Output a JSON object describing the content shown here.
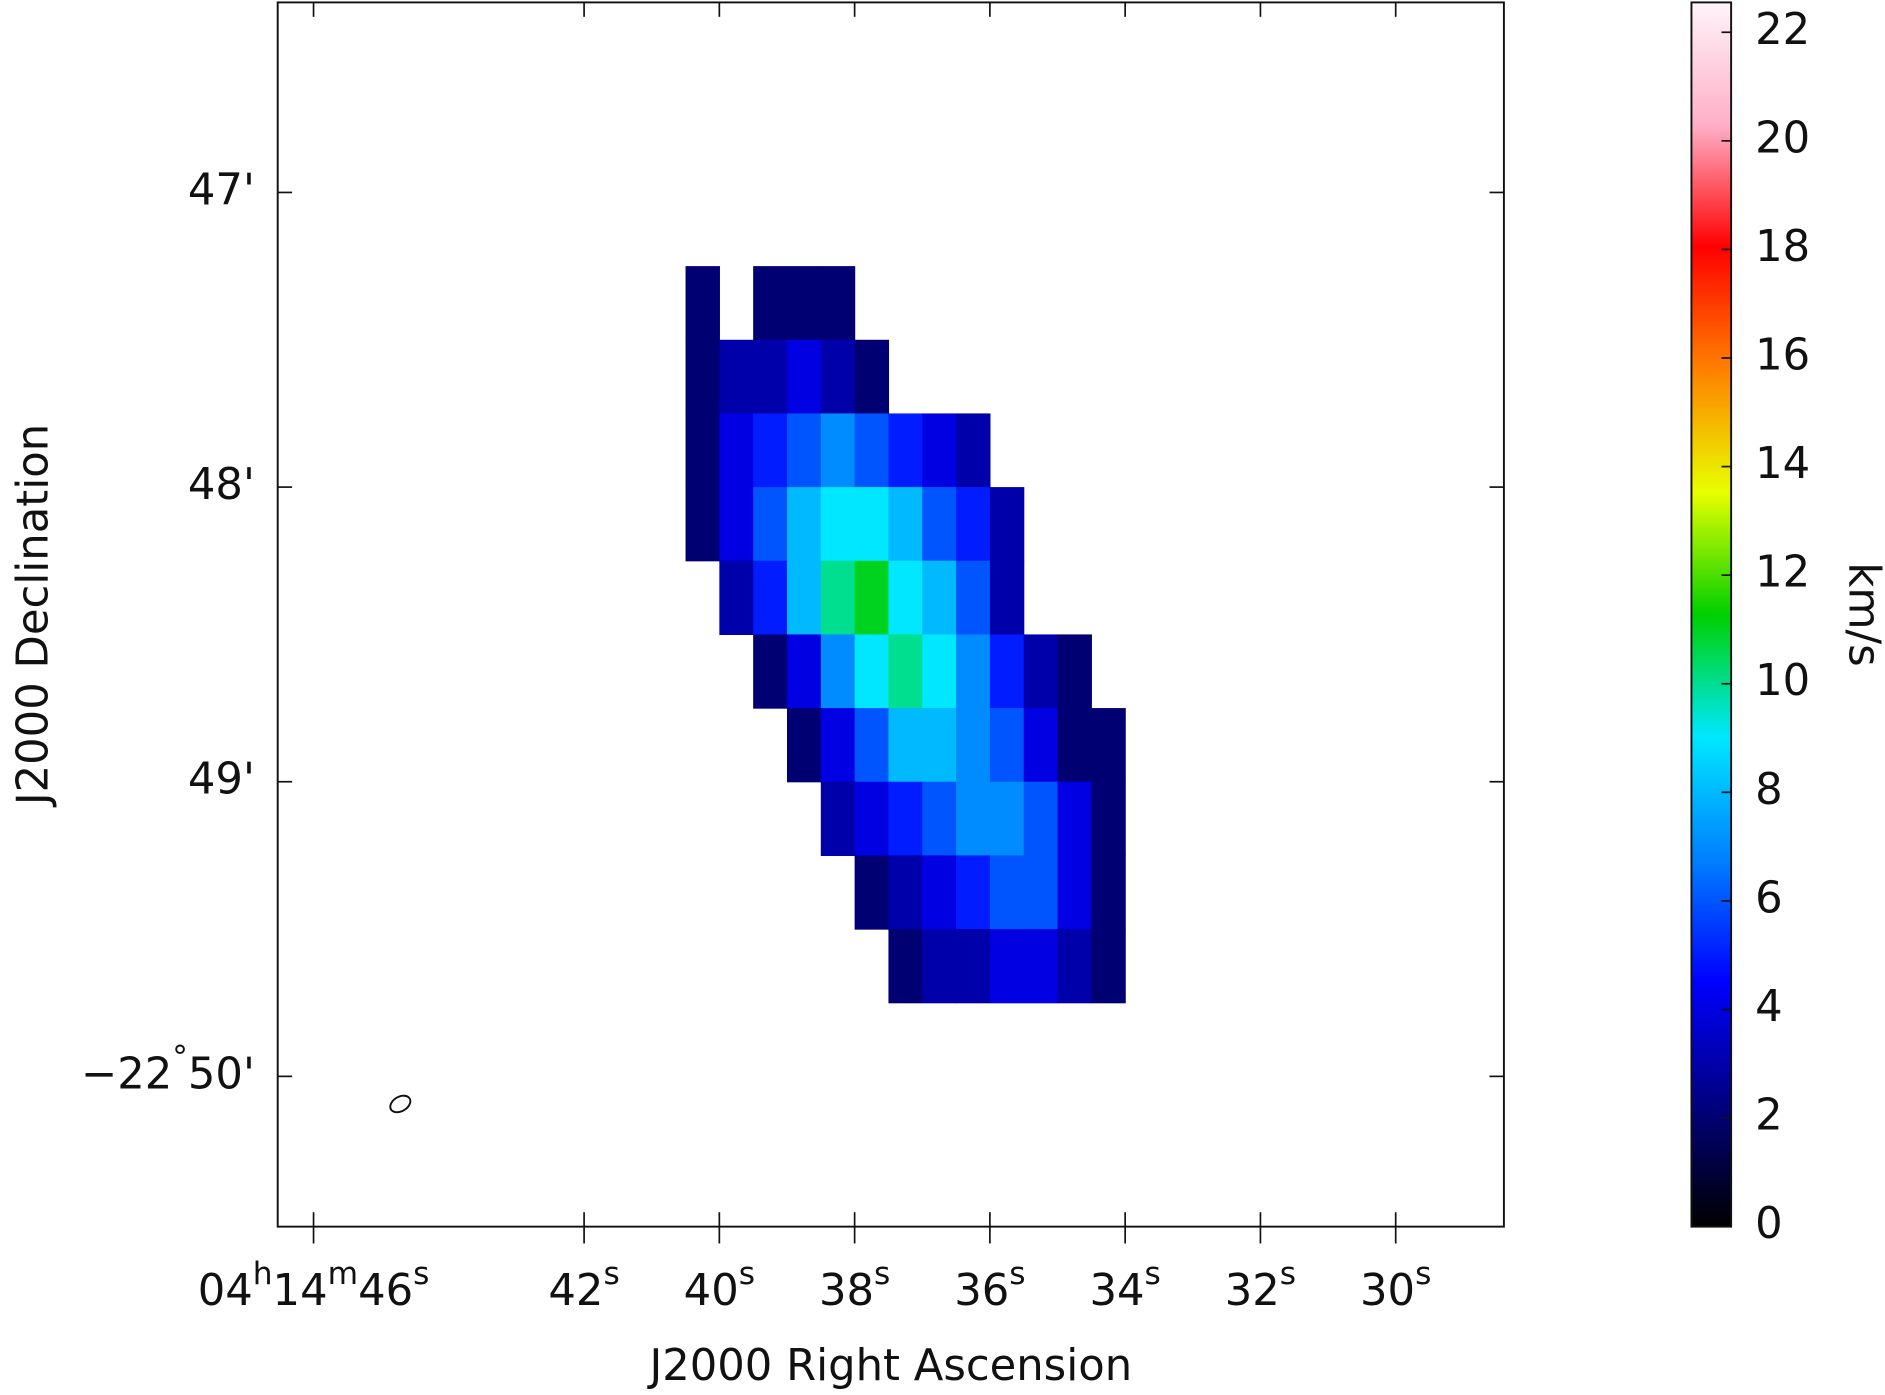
{
  "chart_data": {
    "type": "image",
    "xlabel": "J2000 Right Ascension",
    "ylabel": "J2000 Declination",
    "colorbar_label": "km/s",
    "xlim": [
      46.53,
      28.4
    ],
    "ylim": [
      50.51,
      46.355
    ],
    "xticks": [
      {
        "value": 46,
        "label": "04h14m46s"
      },
      {
        "value": 42,
        "label": "42s"
      },
      {
        "value": 40,
        "label": "40s"
      },
      {
        "value": 38,
        "label": "38s"
      },
      {
        "value": 36,
        "label": "36s"
      },
      {
        "value": 34,
        "label": "34s"
      },
      {
        "value": 32,
        "label": "32s"
      },
      {
        "value": 30,
        "label": "30s"
      }
    ],
    "yticks": [
      {
        "value": 47,
        "label": "47'"
      },
      {
        "value": 48,
        "label": "48'"
      },
      {
        "value": 49,
        "label": "49'"
      },
      {
        "value": 50,
        "label": "−22°50'"
      }
    ],
    "clim": [
      0,
      22.55
    ],
    "cticks": [
      0,
      2,
      4,
      6,
      8,
      10,
      12,
      14,
      16,
      18,
      20,
      22
    ],
    "colormap": [
      "#000000",
      "#000080",
      "#0000ff",
      "#0080ff",
      "#00e8ff",
      "#00d000",
      "#e8ff00",
      "#ff8000",
      "#ff0000",
      "#ffb0c8",
      "#fff4fa"
    ],
    "image": {
      "ra": [
        40.25,
        39.75,
        39.25,
        38.75,
        38.25,
        37.75,
        37.25,
        36.75,
        36.25,
        35.75,
        35.25,
        34.75,
        34.25
      ],
      "dec": [
        47.375,
        47.625,
        47.875,
        48.125,
        48.375,
        48.625,
        48.875,
        49.125,
        49.375,
        49.625
      ],
      "values": [
        [
          2,
          null,
          2,
          2,
          2,
          null,
          null,
          null,
          null,
          null,
          null,
          null,
          null
        ],
        [
          2,
          3,
          3,
          4,
          3,
          2,
          null,
          null,
          null,
          null,
          null,
          null,
          null
        ],
        [
          2,
          4,
          5,
          6,
          7,
          6,
          5,
          4,
          3,
          null,
          null,
          null,
          null
        ],
        [
          2,
          4,
          6,
          8,
          9,
          9,
          8,
          6,
          5,
          3,
          null,
          null,
          null
        ],
        [
          null,
          3,
          5,
          8,
          10,
          11,
          9,
          8,
          6,
          3,
          null,
          null,
          null
        ],
        [
          null,
          null,
          2,
          4,
          7,
          9,
          10,
          9,
          7,
          5,
          3,
          2,
          null
        ],
        [
          null,
          null,
          null,
          2,
          4,
          6,
          8,
          8,
          7,
          6,
          4,
          2,
          2
        ],
        [
          null,
          null,
          null,
          null,
          3,
          4,
          5,
          6,
          7,
          7,
          6,
          4,
          2
        ],
        [
          null,
          null,
          null,
          null,
          null,
          2,
          3,
          4,
          5,
          6,
          6,
          4,
          2
        ],
        [
          null,
          null,
          null,
          null,
          null,
          null,
          2,
          3,
          3,
          4,
          4,
          3,
          2
        ]
      ]
    }
  }
}
